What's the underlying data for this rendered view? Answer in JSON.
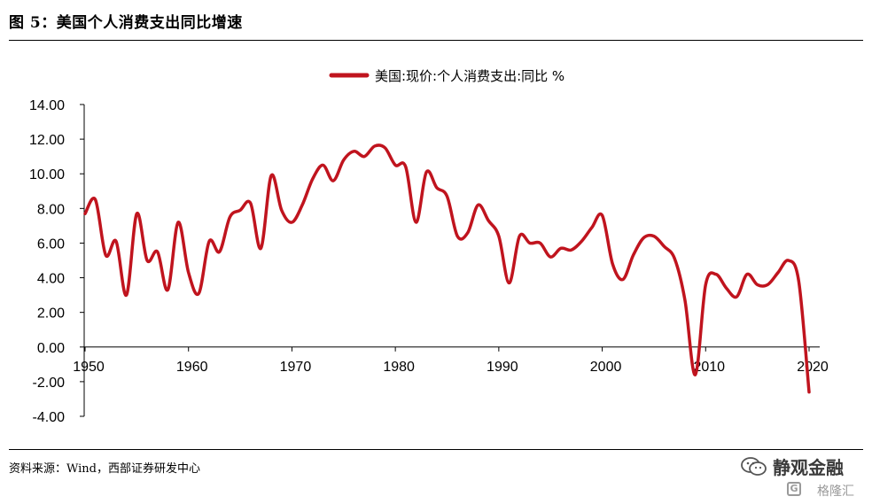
{
  "figure": {
    "title": "图 5：美国个人消费支出同比增速",
    "source": "资料来源：Wind，西部证券研发中心"
  },
  "watermark": {
    "name": "静观金融",
    "sub": "格隆汇",
    "wechat_icon": "wechat-icon"
  },
  "colors": {
    "series": "#c0141e",
    "axis": "#000000"
  },
  "chart_data": {
    "type": "line",
    "title": "",
    "xlabel": "",
    "ylabel": "",
    "xlim": [
      1950,
      2020
    ],
    "ylim": [
      -4,
      14
    ],
    "yticks": [
      "14.00",
      "12.00",
      "10.00",
      "8.00",
      "6.00",
      "4.00",
      "2.00",
      "0.00",
      "-2.00",
      "-4.00"
    ],
    "xticks": [
      "1950",
      "1960",
      "1970",
      "1980",
      "1990",
      "2000",
      "2010",
      "2020"
    ],
    "grid": false,
    "legend_position": "top-center",
    "series": [
      {
        "name": "美国:现价:个人消费支出:同比 %",
        "x": [
          1950,
          1951,
          1952,
          1953,
          1954,
          1955,
          1956,
          1957,
          1958,
          1959,
          1960,
          1961,
          1962,
          1963,
          1964,
          1965,
          1966,
          1967,
          1968,
          1969,
          1970,
          1971,
          1972,
          1973,
          1974,
          1975,
          1976,
          1977,
          1978,
          1979,
          1980,
          1981,
          1982,
          1983,
          1984,
          1985,
          1986,
          1987,
          1988,
          1989,
          1990,
          1991,
          1992,
          1993,
          1994,
          1995,
          1996,
          1997,
          1998,
          1999,
          2000,
          2001,
          2002,
          2003,
          2004,
          2005,
          2006,
          2007,
          2008,
          2009,
          2010,
          2011,
          2012,
          2013,
          2014,
          2015,
          2016,
          2017,
          2018,
          2019,
          2020
        ],
        "values": [
          7.7,
          8.5,
          5.3,
          6.1,
          3.0,
          7.7,
          5.0,
          5.5,
          3.3,
          7.2,
          4.3,
          3.1,
          6.1,
          5.5,
          7.5,
          7.9,
          8.3,
          5.7,
          9.9,
          7.9,
          7.2,
          8.2,
          9.7,
          10.5,
          9.6,
          10.8,
          11.3,
          11.0,
          11.6,
          11.5,
          10.5,
          10.4,
          7.2,
          10.1,
          9.2,
          8.7,
          6.4,
          6.6,
          8.2,
          7.3,
          6.4,
          3.7,
          6.4,
          6.0,
          6.0,
          5.2,
          5.7,
          5.6,
          6.1,
          6.9,
          7.6,
          4.8,
          3.9,
          5.3,
          6.3,
          6.4,
          5.8,
          5.1,
          2.7,
          -1.6,
          3.6,
          4.2,
          3.4,
          2.9,
          4.2,
          3.6,
          3.6,
          4.3,
          5.0,
          3.8,
          -2.6
        ]
      }
    ]
  }
}
